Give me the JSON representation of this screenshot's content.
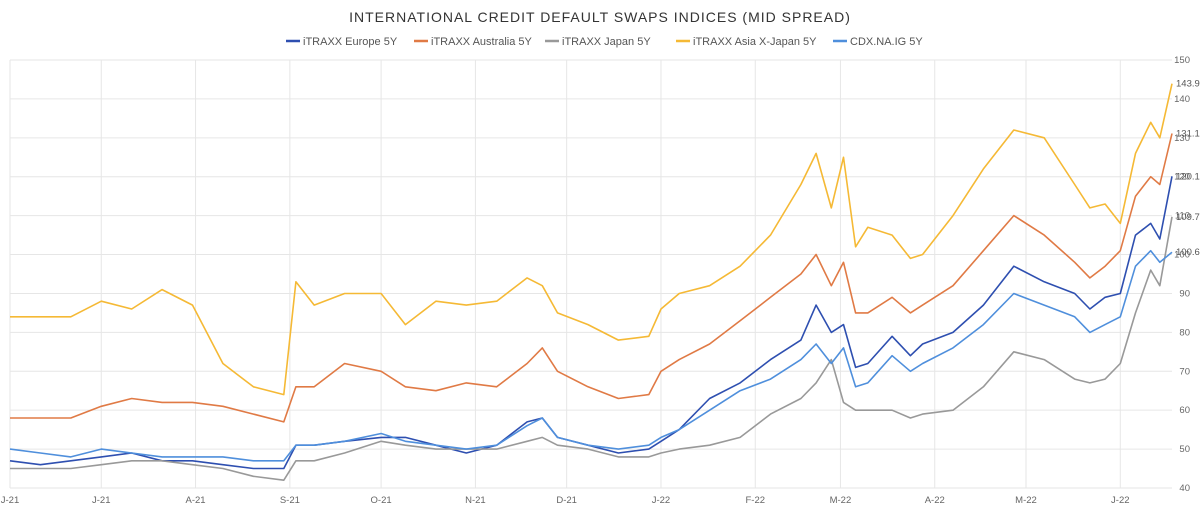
{
  "chart_data": {
    "type": "line",
    "title": "INTERNATIONAL CREDIT DEFAULT SWAPS INDICES (MID SPREAD)",
    "xlabel": "",
    "ylabel": "",
    "ylim": [
      40,
      150
    ],
    "y_ticks": [
      40,
      50,
      60,
      70,
      80,
      90,
      100,
      110,
      120,
      130,
      140,
      150
    ],
    "x_tick_labels": [
      "J-21",
      "J-21",
      "A-21",
      "S-21",
      "O-21",
      "N-21",
      "D-21",
      "J-22",
      "F-22",
      "M-22",
      "A-22",
      "M-22",
      "J-22"
    ],
    "x_tick_days": [
      0,
      30,
      61,
      92,
      122,
      153,
      183,
      214,
      245,
      273,
      304,
      334,
      365
    ],
    "x_max_day": 382,
    "grid": true,
    "legend_position": "top",
    "series": [
      {
        "name": "iTRAXX Europe 5Y",
        "color": "#2E4FB0",
        "end_label": "120.1",
        "points": [
          [
            0,
            47
          ],
          [
            10,
            46
          ],
          [
            20,
            47
          ],
          [
            30,
            48
          ],
          [
            40,
            49
          ],
          [
            50,
            47
          ],
          [
            60,
            47
          ],
          [
            70,
            46
          ],
          [
            80,
            45
          ],
          [
            90,
            45
          ],
          [
            94,
            51
          ],
          [
            100,
            51
          ],
          [
            110,
            52
          ],
          [
            122,
            53
          ],
          [
            130,
            53
          ],
          [
            140,
            51
          ],
          [
            150,
            49
          ],
          [
            160,
            51
          ],
          [
            170,
            57
          ],
          [
            175,
            58
          ],
          [
            180,
            53
          ],
          [
            190,
            51
          ],
          [
            200,
            49
          ],
          [
            210,
            50
          ],
          [
            214,
            52
          ],
          [
            220,
            55
          ],
          [
            230,
            63
          ],
          [
            240,
            67
          ],
          [
            250,
            73
          ],
          [
            260,
            78
          ],
          [
            265,
            87
          ],
          [
            270,
            80
          ],
          [
            274,
            82
          ],
          [
            278,
            71
          ],
          [
            282,
            72
          ],
          [
            290,
            79
          ],
          [
            296,
            74
          ],
          [
            300,
            77
          ],
          [
            310,
            80
          ],
          [
            320,
            87
          ],
          [
            330,
            97
          ],
          [
            340,
            93
          ],
          [
            350,
            90
          ],
          [
            355,
            86
          ],
          [
            360,
            89
          ],
          [
            365,
            90
          ],
          [
            370,
            105
          ],
          [
            375,
            108
          ],
          [
            378,
            104
          ],
          [
            382,
            120.1
          ]
        ]
      },
      {
        "name": "iTRAXX Australia 5Y",
        "color": "#E07A45",
        "end_label": "131.1",
        "points": [
          [
            0,
            58
          ],
          [
            10,
            58
          ],
          [
            20,
            58
          ],
          [
            30,
            61
          ],
          [
            40,
            63
          ],
          [
            50,
            62
          ],
          [
            60,
            62
          ],
          [
            70,
            61
          ],
          [
            80,
            59
          ],
          [
            90,
            57
          ],
          [
            94,
            66
          ],
          [
            100,
            66
          ],
          [
            110,
            72
          ],
          [
            122,
            70
          ],
          [
            130,
            66
          ],
          [
            140,
            65
          ],
          [
            150,
            67
          ],
          [
            160,
            66
          ],
          [
            170,
            72
          ],
          [
            175,
            76
          ],
          [
            180,
            70
          ],
          [
            190,
            66
          ],
          [
            200,
            63
          ],
          [
            210,
            64
          ],
          [
            214,
            70
          ],
          [
            220,
            73
          ],
          [
            230,
            77
          ],
          [
            240,
            83
          ],
          [
            250,
            89
          ],
          [
            260,
            95
          ],
          [
            265,
            100
          ],
          [
            270,
            92
          ],
          [
            274,
            98
          ],
          [
            278,
            85
          ],
          [
            282,
            85
          ],
          [
            290,
            89
          ],
          [
            296,
            85
          ],
          [
            300,
            87
          ],
          [
            310,
            92
          ],
          [
            320,
            101
          ],
          [
            330,
            110
          ],
          [
            340,
            105
          ],
          [
            350,
            98
          ],
          [
            355,
            94
          ],
          [
            360,
            97
          ],
          [
            365,
            101
          ],
          [
            370,
            115
          ],
          [
            375,
            120
          ],
          [
            378,
            118
          ],
          [
            382,
            131.1
          ]
        ]
      },
      {
        "name": "iTRAXX Japan 5Y",
        "color": "#999999",
        "end_label": "109.7",
        "points": [
          [
            0,
            45
          ],
          [
            10,
            45
          ],
          [
            20,
            45
          ],
          [
            30,
            46
          ],
          [
            40,
            47
          ],
          [
            50,
            47
          ],
          [
            60,
            46
          ],
          [
            70,
            45
          ],
          [
            80,
            43
          ],
          [
            90,
            42
          ],
          [
            94,
            47
          ],
          [
            100,
            47
          ],
          [
            110,
            49
          ],
          [
            122,
            52
          ],
          [
            130,
            51
          ],
          [
            140,
            50
          ],
          [
            150,
            50
          ],
          [
            160,
            50
          ],
          [
            170,
            52
          ],
          [
            175,
            53
          ],
          [
            180,
            51
          ],
          [
            190,
            50
          ],
          [
            200,
            48
          ],
          [
            210,
            48
          ],
          [
            214,
            49
          ],
          [
            220,
            50
          ],
          [
            230,
            51
          ],
          [
            240,
            53
          ],
          [
            250,
            59
          ],
          [
            260,
            63
          ],
          [
            265,
            67
          ],
          [
            270,
            73
          ],
          [
            274,
            62
          ],
          [
            278,
            60
          ],
          [
            282,
            60
          ],
          [
            290,
            60
          ],
          [
            296,
            58
          ],
          [
            300,
            59
          ],
          [
            310,
            60
          ],
          [
            320,
            66
          ],
          [
            330,
            75
          ],
          [
            340,
            73
          ],
          [
            350,
            68
          ],
          [
            355,
            67
          ],
          [
            360,
            68
          ],
          [
            365,
            72
          ],
          [
            370,
            85
          ],
          [
            375,
            96
          ],
          [
            378,
            92
          ],
          [
            382,
            109.7
          ]
        ]
      },
      {
        "name": "iTRAXX Asia X-Japan 5Y",
        "color": "#F5B935",
        "end_label": "143.9",
        "points": [
          [
            0,
            84
          ],
          [
            10,
            84
          ],
          [
            20,
            84
          ],
          [
            30,
            88
          ],
          [
            40,
            86
          ],
          [
            50,
            91
          ],
          [
            60,
            87
          ],
          [
            70,
            72
          ],
          [
            80,
            66
          ],
          [
            90,
            64
          ],
          [
            94,
            93
          ],
          [
            100,
            87
          ],
          [
            110,
            90
          ],
          [
            122,
            90
          ],
          [
            130,
            82
          ],
          [
            140,
            88
          ],
          [
            150,
            87
          ],
          [
            160,
            88
          ],
          [
            170,
            94
          ],
          [
            175,
            92
          ],
          [
            180,
            85
          ],
          [
            190,
            82
          ],
          [
            200,
            78
          ],
          [
            210,
            79
          ],
          [
            214,
            86
          ],
          [
            220,
            90
          ],
          [
            230,
            92
          ],
          [
            240,
            97
          ],
          [
            250,
            105
          ],
          [
            260,
            118
          ],
          [
            265,
            126
          ],
          [
            270,
            112
          ],
          [
            274,
            125
          ],
          [
            278,
            102
          ],
          [
            282,
            107
          ],
          [
            290,
            105
          ],
          [
            296,
            99
          ],
          [
            300,
            100
          ],
          [
            310,
            110
          ],
          [
            320,
            122
          ],
          [
            330,
            132
          ],
          [
            340,
            130
          ],
          [
            350,
            118
          ],
          [
            355,
            112
          ],
          [
            360,
            113
          ],
          [
            365,
            108
          ],
          [
            370,
            126
          ],
          [
            375,
            134
          ],
          [
            378,
            130
          ],
          [
            382,
            143.9
          ]
        ]
      },
      {
        "name": "CDX.NA.IG 5Y",
        "color": "#4F8FDC",
        "end_label": "100.6",
        "points": [
          [
            0,
            50
          ],
          [
            10,
            49
          ],
          [
            20,
            48
          ],
          [
            30,
            50
          ],
          [
            40,
            49
          ],
          [
            50,
            48
          ],
          [
            60,
            48
          ],
          [
            70,
            48
          ],
          [
            80,
            47
          ],
          [
            90,
            47
          ],
          [
            94,
            51
          ],
          [
            100,
            51
          ],
          [
            110,
            52
          ],
          [
            122,
            54
          ],
          [
            130,
            52
          ],
          [
            140,
            51
          ],
          [
            150,
            50
          ],
          [
            160,
            51
          ],
          [
            170,
            56
          ],
          [
            175,
            58
          ],
          [
            180,
            53
          ],
          [
            190,
            51
          ],
          [
            200,
            50
          ],
          [
            210,
            51
          ],
          [
            214,
            53
          ],
          [
            220,
            55
          ],
          [
            230,
            60
          ],
          [
            240,
            65
          ],
          [
            250,
            68
          ],
          [
            260,
            73
          ],
          [
            265,
            77
          ],
          [
            270,
            72
          ],
          [
            274,
            76
          ],
          [
            278,
            66
          ],
          [
            282,
            67
          ],
          [
            290,
            74
          ],
          [
            296,
            70
          ],
          [
            300,
            72
          ],
          [
            310,
            76
          ],
          [
            320,
            82
          ],
          [
            330,
            90
          ],
          [
            340,
            87
          ],
          [
            350,
            84
          ],
          [
            355,
            80
          ],
          [
            360,
            82
          ],
          [
            365,
            84
          ],
          [
            370,
            97
          ],
          [
            375,
            101
          ],
          [
            378,
            98
          ],
          [
            382,
            100.6
          ]
        ]
      }
    ]
  }
}
